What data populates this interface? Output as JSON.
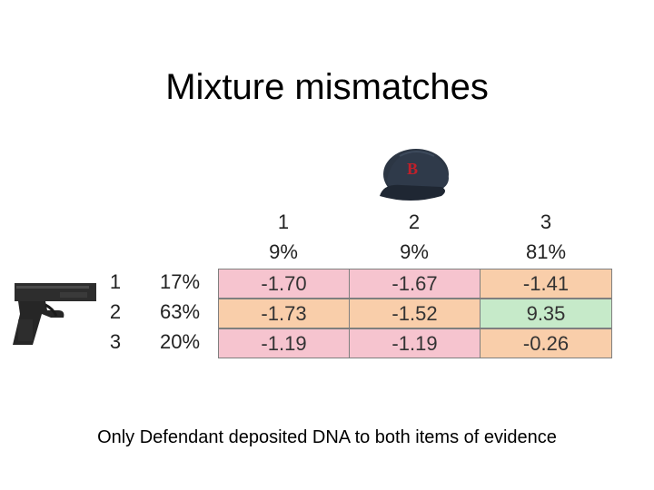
{
  "title": "Mixture mismatches",
  "columns": [
    {
      "index": "1",
      "percent": "9%"
    },
    {
      "index": "2",
      "percent": "9%"
    },
    {
      "index": "3",
      "percent": "81%"
    }
  ],
  "rows": [
    {
      "index": "1",
      "percent": "17%",
      "values": [
        "-1.70",
        "-1.67",
        "-1.41"
      ]
    },
    {
      "index": "2",
      "percent": "63%",
      "values": [
        "-1.73",
        "-1.52",
        "9.35"
      ]
    },
    {
      "index": "3",
      "percent": "20%",
      "values": [
        "-1.19",
        "-1.19",
        "-0.26"
      ]
    }
  ],
  "colors": {
    "negative_large": "#f6c4cf",
    "negative_small": "#f9ceaa",
    "positive": "#c6eac9"
  },
  "caption": "Only Defendant deposited DNA to both items of evidence"
}
